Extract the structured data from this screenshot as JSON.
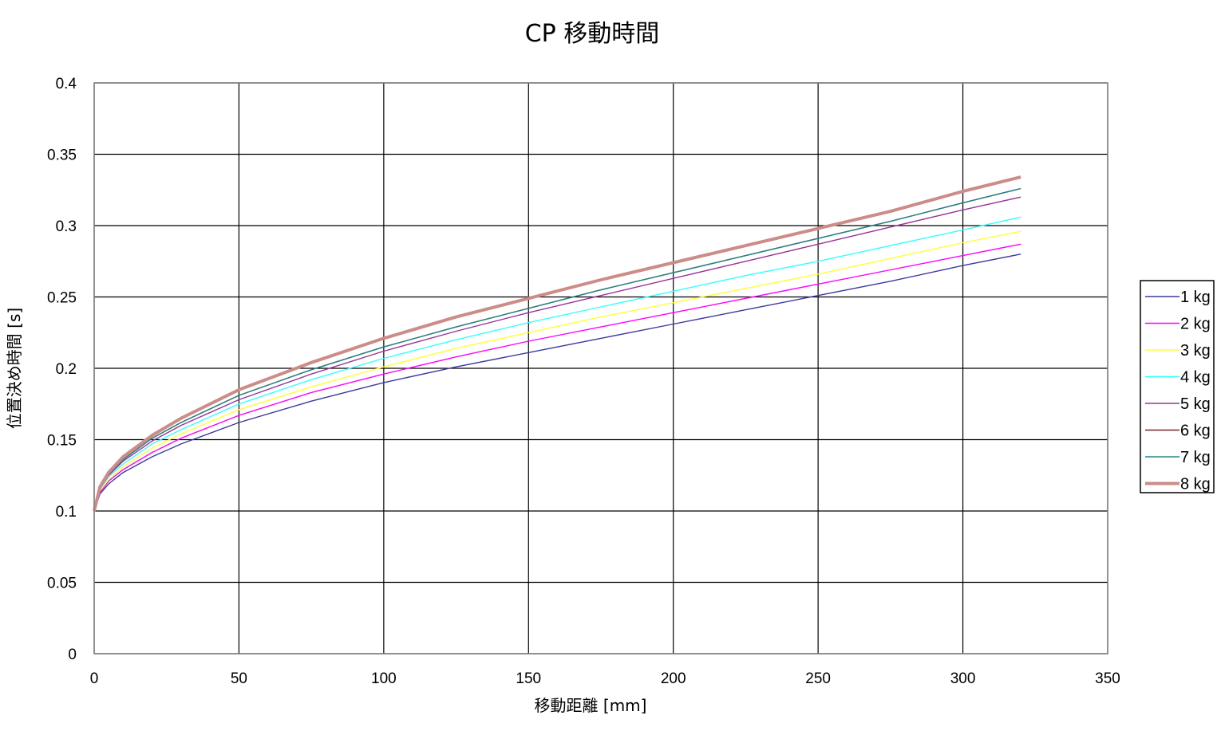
{
  "chart_data": {
    "type": "line",
    "title": "CP 移動時間",
    "xlabel": "移動距離 [mm]",
    "ylabel": "位置決め時間 [s]",
    "xlim": [
      0,
      350
    ],
    "ylim": [
      0,
      0.4
    ],
    "x_ticks": [
      "0",
      "50",
      "100",
      "150",
      "200",
      "250",
      "300",
      "350"
    ],
    "y_ticks": [
      "0",
      "0.05",
      "0.1",
      "0.15",
      "0.2",
      "0.25",
      "0.3",
      "0.35",
      "0.4"
    ],
    "grid": true,
    "legend_position": "right",
    "x": [
      0,
      2,
      5,
      10,
      20,
      30,
      50,
      75,
      100,
      125,
      150,
      175,
      200,
      225,
      250,
      275,
      300,
      320
    ],
    "series": [
      {
        "name": "1 kg",
        "color": "#3a3aa0",
        "values": [
          0.1,
          0.112,
          0.119,
          0.127,
          0.138,
          0.147,
          0.162,
          0.177,
          0.19,
          0.201,
          0.211,
          0.221,
          0.231,
          0.241,
          0.251,
          0.261,
          0.272,
          0.28
        ]
      },
      {
        "name": "2 kg",
        "color": "#ff00ff",
        "values": [
          0.1,
          0.113,
          0.121,
          0.129,
          0.141,
          0.151,
          0.167,
          0.183,
          0.196,
          0.208,
          0.219,
          0.229,
          0.239,
          0.249,
          0.259,
          0.269,
          0.279,
          0.287
        ]
      },
      {
        "name": "3 kg",
        "color": "#ffff33",
        "values": [
          0.1,
          0.114,
          0.122,
          0.131,
          0.144,
          0.154,
          0.171,
          0.187,
          0.201,
          0.214,
          0.225,
          0.236,
          0.246,
          0.256,
          0.266,
          0.277,
          0.288,
          0.296
        ]
      },
      {
        "name": "4 kg",
        "color": "#33ffff",
        "values": [
          0.1,
          0.115,
          0.124,
          0.133,
          0.147,
          0.157,
          0.175,
          0.192,
          0.207,
          0.22,
          0.232,
          0.243,
          0.254,
          0.265,
          0.275,
          0.286,
          0.297,
          0.306
        ]
      },
      {
        "name": "5 kg",
        "color": "#993399",
        "values": [
          0.1,
          0.116,
          0.125,
          0.135,
          0.149,
          0.16,
          0.178,
          0.196,
          0.212,
          0.226,
          0.239,
          0.251,
          0.263,
          0.275,
          0.287,
          0.299,
          0.311,
          0.32
        ]
      },
      {
        "name": "6 kg",
        "color": "#7a2222",
        "values": [
          0.1,
          0.116,
          0.126,
          0.136,
          0.151,
          0.162,
          0.181,
          0.199,
          0.215,
          0.229,
          0.242,
          0.255,
          0.267,
          0.279,
          0.291,
          0.303,
          0.316,
          0.326
        ]
      },
      {
        "name": "7 kg",
        "color": "#228888",
        "values": [
          0.1,
          0.116,
          0.126,
          0.136,
          0.151,
          0.162,
          0.181,
          0.199,
          0.215,
          0.229,
          0.242,
          0.255,
          0.267,
          0.279,
          0.291,
          0.303,
          0.316,
          0.326
        ]
      },
      {
        "name": "8 kg",
        "color": "#cc8c88",
        "values": [
          0.1,
          0.117,
          0.127,
          0.138,
          0.153,
          0.165,
          0.185,
          0.204,
          0.221,
          0.236,
          0.249,
          0.262,
          0.274,
          0.286,
          0.298,
          0.31,
          0.324,
          0.334
        ]
      }
    ]
  }
}
